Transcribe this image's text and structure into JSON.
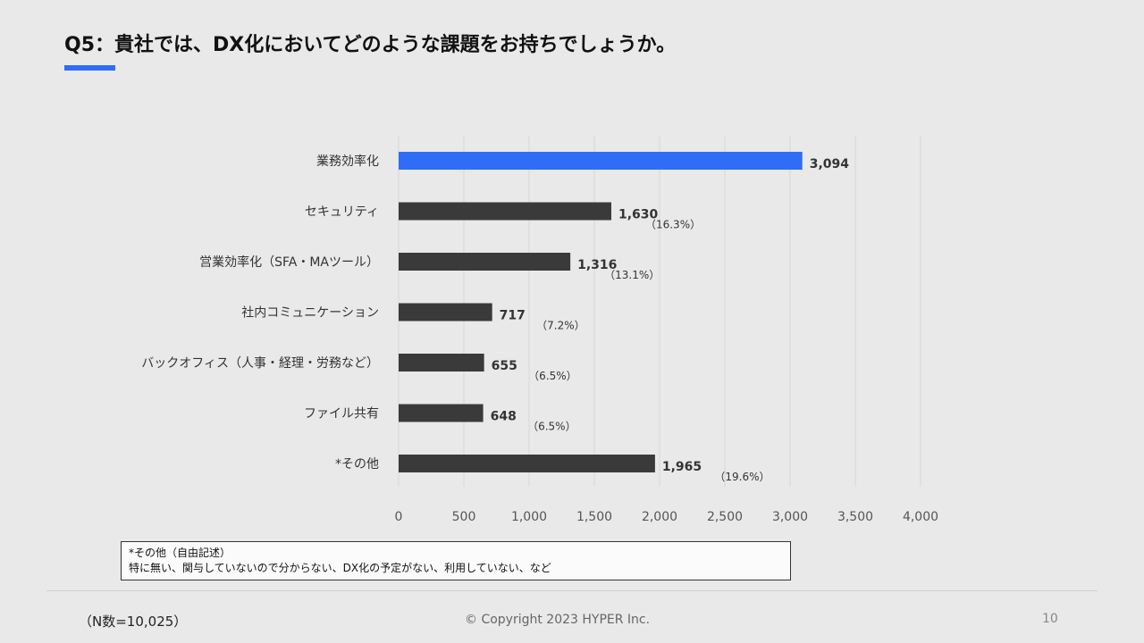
{
  "slide": {
    "title": "Q5：貴社では、DX化においてどのような課題をお持ちでしょうか。",
    "accent_color": "#2f6df6"
  },
  "chart_data": {
    "type": "bar",
    "orientation": "horizontal",
    "categories": [
      "業務効率化",
      "セキュリティ",
      "営業効率化（SFA・MAツール）",
      "社内コミュニケーション",
      "バックオフィス（人事・経理・労務など）",
      "ファイル共有",
      "*その他"
    ],
    "values": [
      3094,
      1630,
      1316,
      717,
      655,
      648,
      1965
    ],
    "value_labels": [
      "3,094",
      "1,630",
      "1,316",
      "717",
      "655",
      "648",
      "1,965"
    ],
    "percent_labels": [
      "",
      "（16.3%）",
      "（13.1%）",
      "（7.2%）",
      "（6.5%）",
      "（6.5%）",
      "（19.6%）"
    ],
    "bar_colors": [
      "#2f6df6",
      "#3a3a3a",
      "#3a3a3a",
      "#3a3a3a",
      "#3a3a3a",
      "#3a3a3a",
      "#3a3a3a"
    ],
    "xlim": [
      0,
      4000
    ],
    "xticks": [
      0,
      500,
      1000,
      1500,
      2000,
      2500,
      3000,
      3500,
      4000
    ],
    "xtick_labels": [
      "0",
      "500",
      "1,000",
      "1,500",
      "2,000",
      "2,500",
      "3,000",
      "3,500",
      "4,000"
    ],
    "grid": true,
    "xlabel": "",
    "ylabel": ""
  },
  "note": {
    "title": "*その他（自由記述）",
    "text": "特に無い、関与していないので分からない、DX化の予定がない、利用していない、など"
  },
  "footer": {
    "sample_size": "（N数=10,025）",
    "copyright": "© Copyright 2023 HYPER Inc.",
    "page_number": "10"
  }
}
